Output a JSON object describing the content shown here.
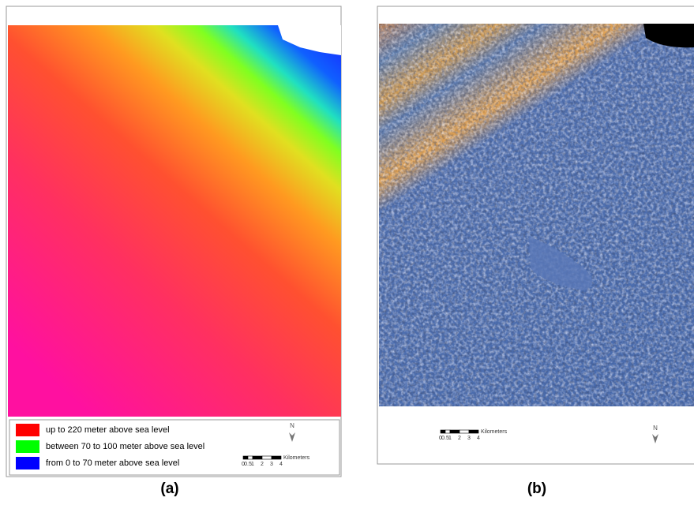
{
  "panels": [
    {
      "label": "(a)",
      "legend": [
        {
          "text": "up to 220 meter above sea level",
          "color": "#ff0000"
        },
        {
          "text": "between 70 to 100 meter above sea level",
          "color": "#00ff00"
        },
        {
          "text": "from 0 to 70 meter above sea level",
          "color": "#0000ff"
        }
      ],
      "scale_bar": {
        "ticks": [
          "0",
          "0.5",
          "1",
          "2",
          "3",
          "4"
        ],
        "unit": "Kilometers"
      },
      "north": "N"
    },
    {
      "label": "(b)",
      "scale_bar": {
        "ticks": [
          "0",
          "0.5",
          "1",
          "2",
          "3",
          "4"
        ],
        "unit": "Kilometers"
      },
      "north": "N"
    }
  ]
}
